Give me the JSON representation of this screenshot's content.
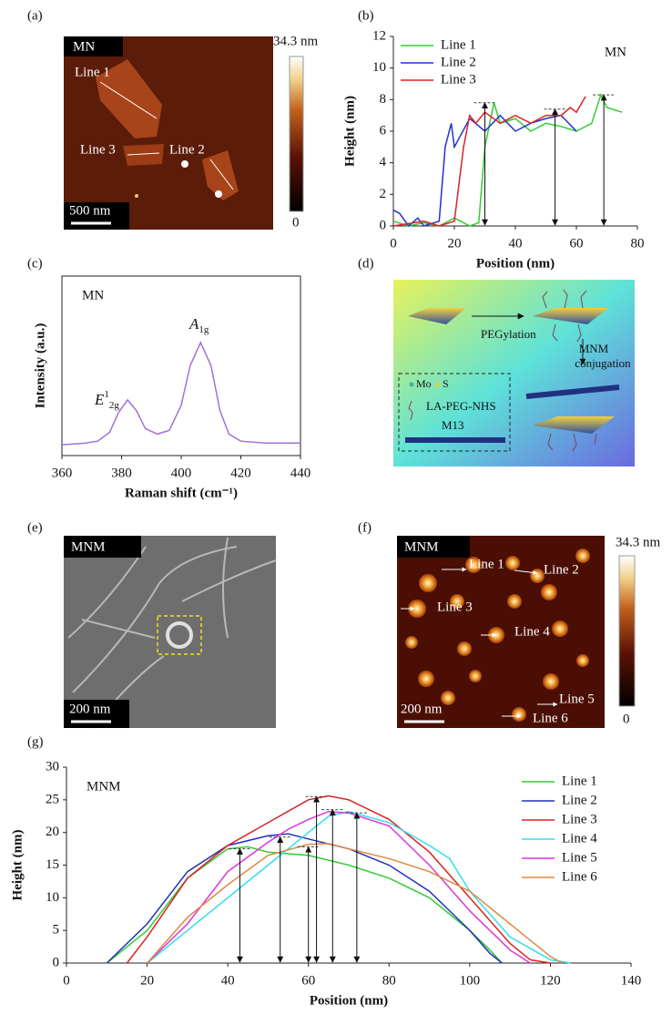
{
  "panels": [
    "(a)",
    "(b)",
    "(c)",
    "(d)",
    "(e)",
    "(f)",
    "(g)"
  ],
  "images": {
    "a": {
      "tag": "MN",
      "scale_bar": "500 nm",
      "colorbar_max": "34.3 nm",
      "colorbar_min": "0",
      "lines": [
        "Line 1",
        "Line 3",
        "Line 2"
      ]
    },
    "e": {
      "tag": "MNM",
      "scale_bar": "200 nm"
    },
    "f": {
      "tag": "MNM",
      "scale_bar": "200 nm",
      "colorbar_max": "34.3 nm",
      "colorbar_min": "0",
      "lines": [
        "Line 1",
        "Line 2",
        "Line 3",
        "Line 4",
        "Line 5",
        "Line 6"
      ]
    }
  },
  "diagram": {
    "step1": "PEGylation",
    "step2": [
      "MNM",
      "conjugation"
    ],
    "legend": {
      "mo": "Mo",
      "s": "S",
      "linker": "LA-PEG-NHS",
      "phage": "M13"
    }
  },
  "chart_data": [
    {
      "type": "line",
      "annotation": "MN",
      "x_label": "Position (nm)",
      "y_label": "Height (nm)",
      "xlim": [
        0,
        80
      ],
      "xticks": [
        0,
        20,
        40,
        60,
        80
      ],
      "ylim": [
        0,
        12
      ],
      "yticks": [
        0,
        2,
        4,
        6,
        8,
        10,
        12
      ],
      "legend": "upper left",
      "series": [
        {
          "name": "Line 1",
          "color": "#33cc33",
          "x": [
            0,
            5,
            10,
            15,
            20,
            25,
            28,
            30,
            33,
            35,
            40,
            45,
            50,
            55,
            60,
            65,
            68,
            70,
            75
          ],
          "values": [
            0.3,
            0,
            0.2,
            0,
            0.5,
            0,
            0.2,
            5,
            7.8,
            6.5,
            6.8,
            6,
            6.5,
            6.3,
            6,
            6.5,
            8.3,
            7.5,
            7.2
          ]
        },
        {
          "name": "Line 2",
          "color": "#2233cc",
          "x": [
            0,
            2,
            5,
            8,
            10,
            15,
            17,
            19,
            20,
            25,
            30,
            35,
            40,
            45,
            50,
            55,
            60
          ],
          "values": [
            1,
            0.8,
            0,
            0.5,
            0,
            0.3,
            5,
            6.5,
            5,
            6.8,
            6,
            7,
            6,
            6.5,
            6.8,
            7,
            6
          ]
        },
        {
          "name": "Line 3",
          "color": "#dd2222",
          "x": [
            0,
            10,
            15,
            20,
            23,
            25,
            27,
            30,
            35,
            40,
            45,
            50,
            55,
            58,
            60,
            63
          ],
          "values": [
            0,
            0.3,
            0,
            0.3,
            5,
            7,
            6.5,
            7.2,
            6.5,
            7,
            6.5,
            7,
            7,
            7.5,
            7.2,
            8.2
          ]
        }
      ],
      "markers": {
        "x": [
          30,
          53,
          69
        ],
        "values": [
          7.8,
          7.4,
          8.3
        ]
      }
    },
    {
      "type": "line",
      "annotation": "MN",
      "x_label": "Raman shift (cm⁻¹)",
      "y_label": "Intensity (a.u.)",
      "xlim": [
        360,
        440
      ],
      "xticks": [
        360,
        380,
        400,
        420,
        440
      ],
      "ylim": [
        0,
        1
      ],
      "frame": true,
      "peaks": [
        {
          "base": "E",
          "sup": "1",
          "sub": "2g"
        },
        {
          "base": "A",
          "sub": "1g"
        }
      ],
      "series": [
        {
          "name": "MN",
          "color": "#a070d8",
          "x": [
            360,
            368,
            372,
            376,
            379,
            382,
            385,
            388,
            392,
            396,
            400,
            403,
            406.5,
            410,
            413,
            416,
            420,
            428,
            440
          ],
          "values": [
            0.06,
            0.07,
            0.08,
            0.13,
            0.24,
            0.31,
            0.25,
            0.15,
            0.12,
            0.14,
            0.28,
            0.5,
            0.63,
            0.5,
            0.25,
            0.12,
            0.08,
            0.07,
            0.07
          ]
        }
      ]
    },
    {
      "type": "line",
      "annotation": "MNM",
      "x_label": "Position (nm)",
      "y_label": "Height (nm)",
      "xlim": [
        0,
        140
      ],
      "xticks": [
        0,
        20,
        40,
        60,
        80,
        100,
        120,
        140
      ],
      "ylim": [
        0,
        30
      ],
      "yticks": [
        0,
        5,
        10,
        15,
        20,
        25,
        30
      ],
      "legend": "upper right",
      "series": [
        {
          "name": "Line 1",
          "color": "#33cc33",
          "x": [
            10,
            20,
            30,
            40,
            45,
            50,
            60,
            70,
            80,
            90,
            100,
            105,
            108
          ],
          "values": [
            0,
            5,
            13,
            17.5,
            17.8,
            17,
            16.5,
            15,
            13,
            10,
            5,
            2,
            0
          ]
        },
        {
          "name": "Line 2",
          "color": "#2233bb",
          "x": [
            10,
            20,
            30,
            40,
            50,
            55,
            60,
            70,
            80,
            90,
            100,
            105,
            108
          ],
          "values": [
            0,
            6,
            14,
            18,
            19.5,
            19.8,
            19,
            17.5,
            15,
            11,
            5,
            1.5,
            0
          ]
        },
        {
          "name": "Line 3",
          "color": "#dd2222",
          "x": [
            15,
            20,
            30,
            40,
            50,
            60,
            65,
            70,
            80,
            90,
            100,
            110,
            115,
            120
          ],
          "values": [
            0,
            4,
            13,
            18,
            21.5,
            25,
            25.6,
            25,
            22,
            17,
            10,
            3,
            0.5,
            0
          ]
        },
        {
          "name": "Line 4",
          "color": "#33ddee",
          "x": [
            20,
            30,
            40,
            50,
            60,
            65,
            70,
            80,
            90,
            95,
            100,
            110,
            120,
            125
          ],
          "values": [
            0,
            5,
            10,
            15,
            20,
            22.5,
            23.2,
            21.5,
            18,
            16,
            11,
            4,
            0.5,
            0
          ]
        },
        {
          "name": "Line 5",
          "color": "#dd33dd",
          "x": [
            20,
            30,
            40,
            50,
            55,
            60,
            65,
            70,
            80,
            90,
            100,
            110,
            115
          ],
          "values": [
            0,
            6,
            14,
            18.5,
            20.5,
            22,
            23.2,
            23,
            21,
            15,
            8,
            2,
            0
          ]
        },
        {
          "name": "Line 6",
          "color": "#dd8844",
          "x": [
            20,
            30,
            40,
            50,
            60,
            65,
            70,
            80,
            90,
            100,
            110,
            120,
            123
          ],
          "values": [
            0,
            7,
            12,
            16.5,
            18.2,
            18.3,
            17.5,
            16,
            14,
            11,
            6,
            1,
            0
          ]
        }
      ],
      "markers": {
        "x": [
          43,
          53,
          60,
          62,
          66,
          72
        ],
        "values": [
          17.5,
          19.3,
          17.8,
          25.5,
          23.5,
          23
        ]
      }
    }
  ]
}
